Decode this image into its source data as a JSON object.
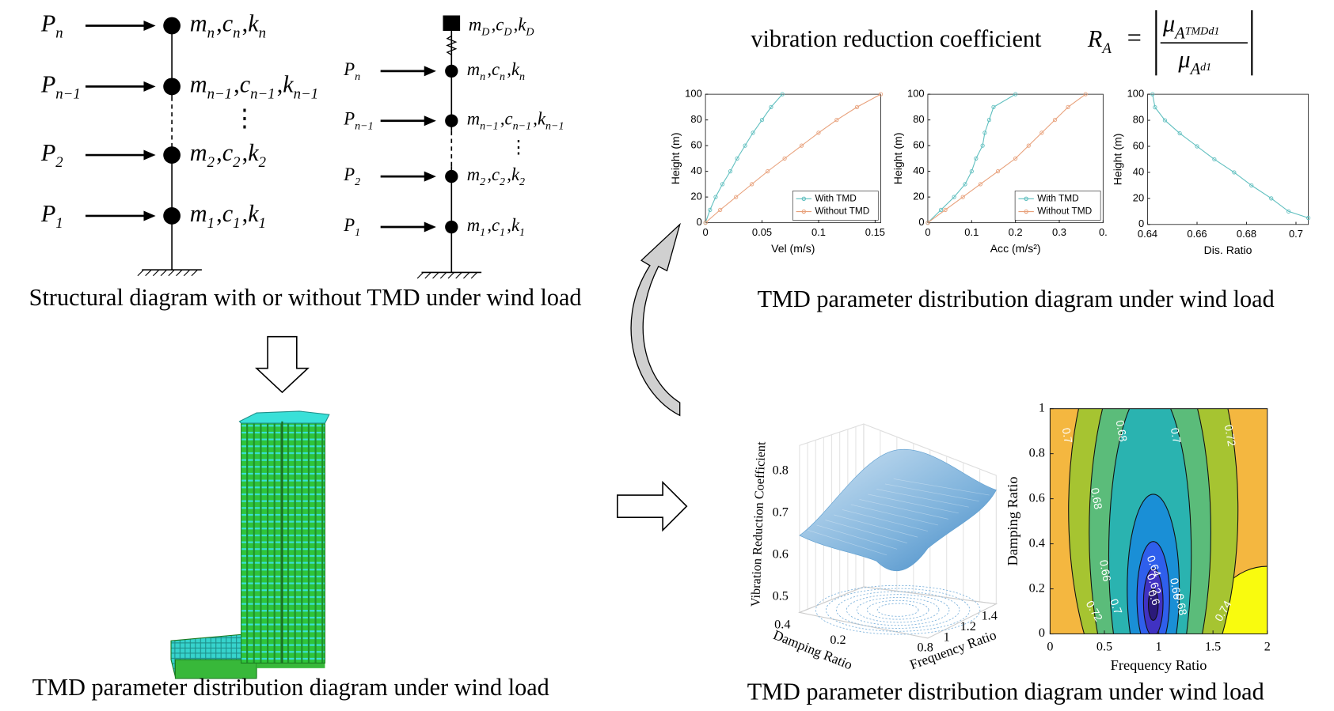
{
  "separator": ",",
  "ellipsis": "⋮",
  "structure_without_tmd": {
    "nodes": [
      {
        "force": [
          "P",
          "n"
        ],
        "terms": [
          [
            "m",
            "n"
          ],
          [
            "c",
            "n"
          ],
          [
            "k",
            "n"
          ]
        ]
      },
      {
        "force": [
          "P",
          "n−1"
        ],
        "terms": [
          [
            "m",
            "n−1"
          ],
          [
            "c",
            "n−1"
          ],
          [
            "k",
            "n−1"
          ]
        ]
      },
      {
        "force": [
          "P",
          "2"
        ],
        "terms": [
          [
            "m",
            "2"
          ],
          [
            "c",
            "2"
          ],
          [
            "k",
            "2"
          ]
        ]
      },
      {
        "force": [
          "P",
          "1"
        ],
        "terms": [
          [
            "m",
            "1"
          ],
          [
            "c",
            "1"
          ],
          [
            "k",
            "1"
          ]
        ]
      }
    ]
  },
  "structure_with_tmd": {
    "damper": [
      [
        "m",
        "D"
      ],
      [
        "c",
        "D"
      ],
      [
        "k",
        "D"
      ]
    ],
    "nodes": [
      {
        "force": [
          "P",
          "n"
        ],
        "terms": [
          [
            "m",
            "n"
          ],
          [
            "c",
            "n"
          ],
          [
            "k",
            "n"
          ]
        ]
      },
      {
        "force": [
          "P",
          "n−1"
        ],
        "terms": [
          [
            "m",
            "n−1"
          ],
          [
            "c",
            "n−1"
          ],
          [
            "k",
            "n−1"
          ]
        ]
      },
      {
        "force": [
          "P",
          "2"
        ],
        "terms": [
          [
            "m",
            "2"
          ],
          [
            "c",
            "2"
          ],
          [
            "k",
            "2"
          ]
        ]
      },
      {
        "force": [
          "P",
          "1"
        ],
        "terms": [
          [
            "m",
            "1"
          ],
          [
            "c",
            "1"
          ],
          [
            "k",
            "1"
          ]
        ]
      }
    ]
  },
  "formula": {
    "text": "vibration reduction coefficient",
    "lhs": [
      "R",
      "A"
    ],
    "equals": "=",
    "numerator": [
      "μ",
      "A",
      "TMDd1"
    ],
    "denominator": [
      "μ",
      "A",
      "d1"
    ]
  },
  "captions": {
    "structure": "Structural diagram with or without TMD under wind load",
    "model": "TMD parameter distribution diagram under wind load",
    "profiles": "TMD parameter distribution diagram under wind load",
    "surfaces": "TMD parameter distribution diagram under wind load"
  },
  "chart_data": [
    {
      "type": "line",
      "xlabel": "Vel (m/s)",
      "ylabel": "Height (m)",
      "xlim": [
        0,
        0.155
      ],
      "xticks": [
        0,
        0.05,
        0.1,
        0.15
      ],
      "ylim": [
        0,
        100
      ],
      "yticks": [
        0,
        20,
        40,
        60,
        80,
        100
      ],
      "y": [
        0,
        10,
        20,
        30,
        40,
        50,
        60,
        70,
        80,
        90,
        100
      ],
      "legend": "lower right",
      "series": [
        {
          "name": "With TMD",
          "color": "#5fbfbf",
          "values": [
            0,
            0.004,
            0.009,
            0.015,
            0.022,
            0.028,
            0.035,
            0.042,
            0.05,
            0.058,
            0.068
          ]
        },
        {
          "name": "Without TMD",
          "color": "#e8a07a",
          "values": [
            0,
            0.013,
            0.027,
            0.041,
            0.055,
            0.07,
            0.085,
            0.1,
            0.116,
            0.134,
            0.155
          ]
        }
      ]
    },
    {
      "type": "line",
      "xlabel": "Acc (m/s²)",
      "ylabel": "Height (m)",
      "xlim": [
        0,
        0.4
      ],
      "xticks": [
        0,
        0.1,
        0.2,
        0.3,
        {
          "value": 0.4,
          "label": "0."
        }
      ],
      "ylim": [
        0,
        100
      ],
      "yticks": [
        0,
        20,
        40,
        60,
        80,
        100
      ],
      "y": [
        0,
        10,
        20,
        30,
        40,
        50,
        60,
        70,
        80,
        90,
        100
      ],
      "legend": "lower right",
      "series": [
        {
          "name": "With TMD",
          "color": "#5fbfbf",
          "values": [
            0,
            0.03,
            0.06,
            0.085,
            0.1,
            0.11,
            0.125,
            0.13,
            0.14,
            0.15,
            0.2
          ]
        },
        {
          "name": "Without TMD",
          "color": "#e8a07a",
          "values": [
            0,
            0.04,
            0.08,
            0.12,
            0.16,
            0.2,
            0.23,
            0.26,
            0.29,
            0.32,
            0.36
          ]
        }
      ]
    },
    {
      "type": "line",
      "xlabel": "Dis. Ratio",
      "ylabel": "Height (m)",
      "xlim": [
        0.64,
        0.705
      ],
      "xticks": [
        0.64,
        0.66,
        0.68,
        0.7
      ],
      "ylim": [
        0,
        100
      ],
      "yticks": [
        0,
        20,
        40,
        60,
        80,
        100
      ],
      "y": [
        5,
        10,
        20,
        30,
        40,
        50,
        60,
        70,
        80,
        90,
        100
      ],
      "series": [
        {
          "color": "#5fbfbf",
          "values": [
            0.705,
            0.697,
            0.69,
            0.682,
            0.675,
            0.667,
            0.66,
            0.653,
            0.647,
            0.643,
            0.642
          ]
        }
      ]
    },
    {
      "type": "surface",
      "zlabel": "Vibration Reduction Coefficient",
      "ylabel": "Damping Ratio",
      "xlabel": "Frequency Ratio",
      "zticks": [
        0.5,
        0.6,
        0.7,
        0.8
      ],
      "yticks": [
        0.4,
        0.2
      ],
      "xticks": [
        0.8,
        1,
        1.2,
        1.4
      ]
    },
    {
      "type": "contour",
      "xlabel": "Frequency Ratio",
      "ylabel": "Damping Ratio",
      "xlim": [
        0,
        2
      ],
      "xticks": [
        0,
        0.5,
        1,
        1.5,
        2
      ],
      "ylim": [
        0,
        1
      ],
      "yticks": [
        0,
        0.2,
        0.4,
        0.6,
        0.8,
        1
      ],
      "levels": [
        0.74,
        0.72,
        0.7,
        0.68,
        0.66,
        0.64,
        0.62,
        0.6
      ],
      "colors": [
        "#f9fb0e",
        "#a6c431",
        "#5bbc7a",
        "#2ab3b0",
        "#1a8fd6",
        "#2f5fec",
        "#4032c2",
        "#2b1a7a"
      ],
      "background": "#f4b740",
      "contour_labels": [
        0.7,
        0.68,
        0.7,
        0.72,
        0.68,
        0.66,
        0.64,
        0.62,
        0.6,
        0.66,
        0.68,
        0.7,
        0.72,
        0.74
      ]
    }
  ]
}
